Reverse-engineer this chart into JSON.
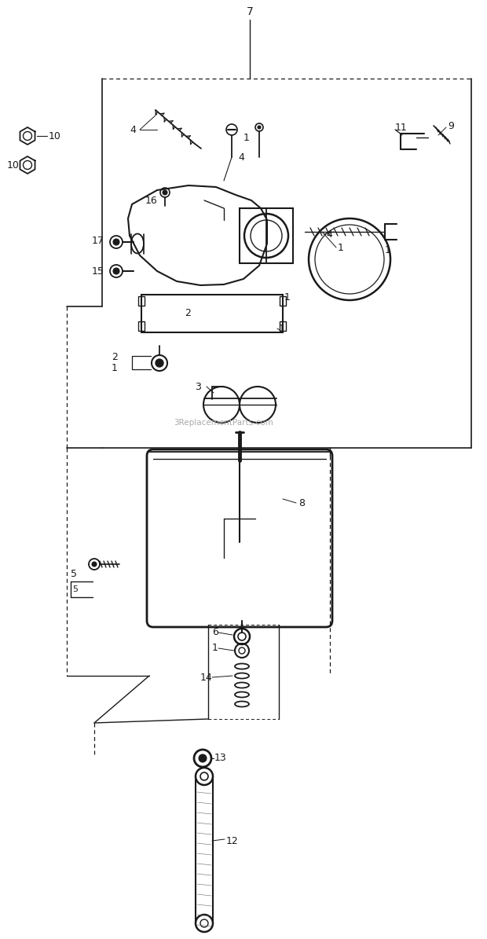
{
  "bg_color": "#ffffff",
  "lc": "#1a1a1a",
  "watermark": "3ReplacementParts.com",
  "fig_w": 6.2,
  "fig_h": 11.95,
  "dpi": 100
}
